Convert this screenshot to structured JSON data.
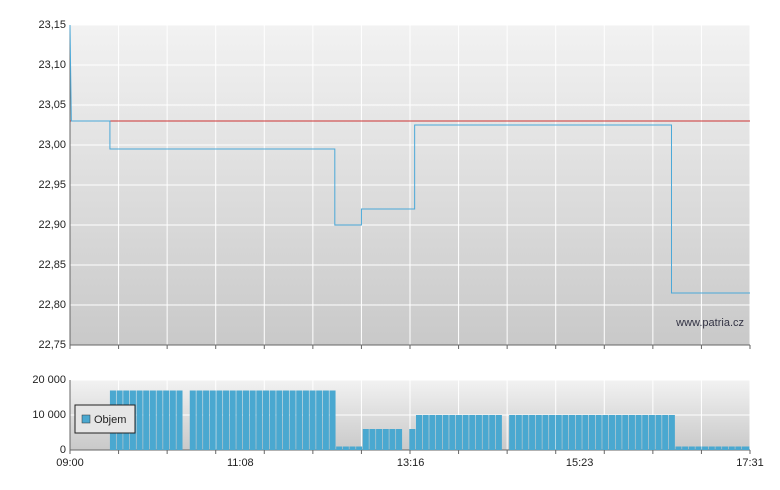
{
  "chart_data": [
    {
      "type": "line",
      "x": [
        540,
        541,
        570,
        570,
        739,
        739,
        759,
        759,
        799,
        799,
        992,
        992,
        1051
      ],
      "series": [
        {
          "color": "#4aa8d8",
          "values": [
            23.15,
            23.03,
            23.03,
            22.995,
            22.995,
            22.9,
            22.9,
            22.92,
            22.92,
            23.025,
            23.025,
            22.815,
            22.815
          ]
        }
      ],
      "xlim": [
        540,
        1051
      ],
      "ylim": [
        22.75,
        23.15
      ],
      "yticks": [
        {
          "value": 22.75,
          "label": "22,75"
        },
        {
          "value": 22.8,
          "label": "22,80"
        },
        {
          "value": 22.85,
          "label": "22,85"
        },
        {
          "value": 22.9,
          "label": "22,90"
        },
        {
          "value": 22.95,
          "label": "22,95"
        },
        {
          "value": 23.0,
          "label": "23,00"
        },
        {
          "value": 23.05,
          "label": "23,05"
        },
        {
          "value": 23.1,
          "label": "23,10"
        },
        {
          "value": 23.15,
          "label": "23,15"
        }
      ],
      "xgrid": [
        540,
        576.5,
        613,
        649.5,
        686,
        722.5,
        759,
        795.5,
        832,
        868.5,
        905,
        941.5,
        978,
        1014.5,
        1051
      ],
      "reference_line": {
        "value": 23.03,
        "color": "#cc3333"
      },
      "watermark": "www.patria.cz",
      "grid": true
    },
    {
      "type": "bar",
      "x": [
        540,
        545,
        550,
        555,
        560,
        565,
        570,
        575,
        580,
        585,
        590,
        595,
        600,
        605,
        610,
        615,
        620,
        625,
        630,
        635,
        640,
        645,
        650,
        655,
        660,
        665,
        670,
        675,
        680,
        685,
        690,
        695,
        700,
        705,
        710,
        715,
        720,
        725,
        730,
        735,
        740,
        745,
        750,
        755,
        760,
        765,
        770,
        775,
        780,
        785,
        790,
        795,
        800,
        805,
        810,
        815,
        820,
        825,
        830,
        835,
        840,
        845,
        850,
        855,
        860,
        865,
        870,
        875,
        880,
        885,
        890,
        895,
        900,
        905,
        910,
        915,
        920,
        925,
        930,
        935,
        940,
        945,
        950,
        955,
        960,
        965,
        970,
        975,
        980,
        985,
        990,
        995,
        1000,
        1005,
        1010,
        1015,
        1020,
        1025,
        1030,
        1035,
        1040,
        1045
      ],
      "series": [
        {
          "name": "Objem",
          "color": "#4aa8d0",
          "values": [
            0,
            0,
            0,
            0,
            0,
            0,
            17000,
            17000,
            17000,
            17000,
            17000,
            17000,
            17000,
            17000,
            17000,
            17000,
            17000,
            0,
            17000,
            17000,
            17000,
            17000,
            17000,
            17000,
            17000,
            17000,
            17000,
            17000,
            17000,
            17000,
            17000,
            17000,
            17000,
            17000,
            17000,
            17000,
            17000,
            17000,
            17000,
            17000,
            1000,
            1000,
            1000,
            1000,
            6000,
            6000,
            6000,
            6000,
            6000,
            6000,
            0,
            6000,
            10000,
            10000,
            10000,
            10000,
            10000,
            10000,
            10000,
            10000,
            10000,
            10000,
            10000,
            10000,
            10000,
            0,
            10000,
            10000,
            10000,
            10000,
            10000,
            10000,
            10000,
            10000,
            10000,
            10000,
            10000,
            10000,
            10000,
            10000,
            10000,
            10000,
            10000,
            10000,
            10000,
            10000,
            10000,
            10000,
            10000,
            10000,
            10000,
            1000,
            1000,
            1000,
            1000,
            1000,
            1000,
            1000,
            1000,
            1000,
            1000,
            1000
          ]
        }
      ],
      "xlim": [
        540,
        1051
      ],
      "ylim": [
        0,
        20000
      ],
      "yticks": [
        0,
        {
          "value": 10000,
          "label": "10 000"
        },
        {
          "value": 20000,
          "label": "20 000"
        }
      ],
      "xticks": [
        {
          "value": 540,
          "label": "09:00"
        },
        {
          "value": 668,
          "label": "11:08"
        },
        {
          "value": 796,
          "label": "13:16"
        },
        {
          "value": 923,
          "label": "15:23"
        },
        {
          "value": 1051,
          "label": "17:31"
        }
      ],
      "xgrid": [
        540,
        576.5,
        613,
        649.5,
        686,
        722.5,
        759,
        795.5,
        832,
        868.5,
        905,
        941.5,
        978,
        1014.5,
        1051
      ],
      "legend": "left",
      "grid": true
    }
  ]
}
